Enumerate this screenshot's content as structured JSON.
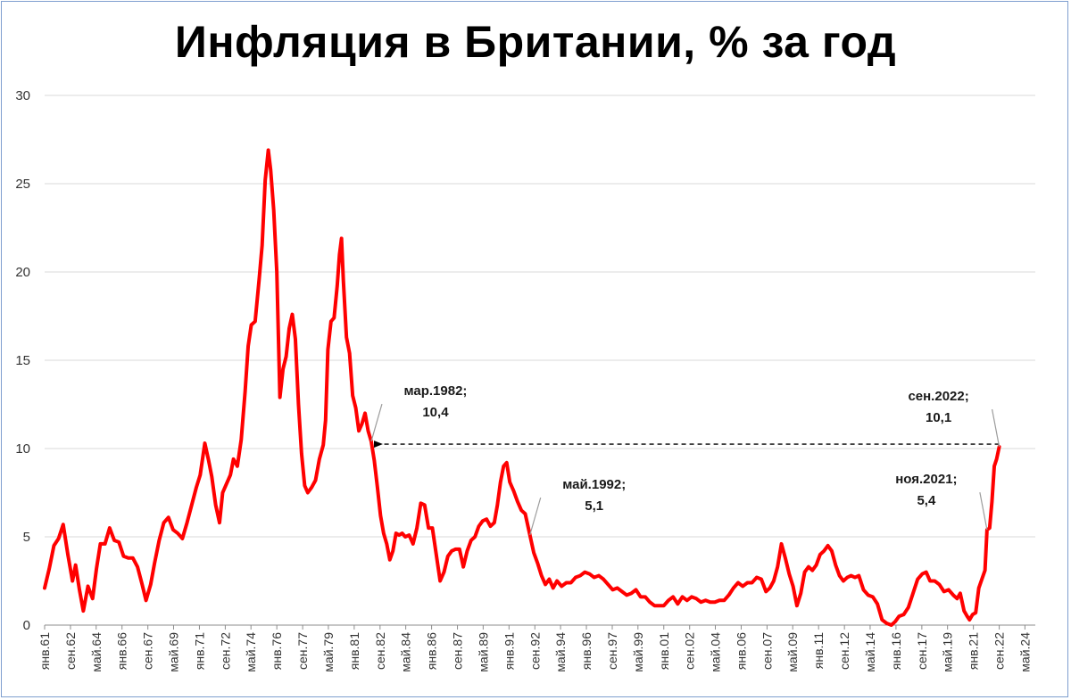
{
  "chart_data": {
    "type": "line",
    "title": "Инфляция в Британии, % за год",
    "xlabel": "",
    "ylabel": "",
    "ylim": [
      0,
      30
    ],
    "yticks": [
      0,
      5,
      10,
      15,
      20,
      25,
      30
    ],
    "grid": true,
    "legend": "none",
    "x_range": [
      1961.0,
      2025.0
    ],
    "x_tick_labels": [
      {
        "label": "янв.61",
        "x": 1961.0
      },
      {
        "label": "сен.62",
        "x": 1962.67
      },
      {
        "label": "май.64",
        "x": 1964.33
      },
      {
        "label": "янв.66",
        "x": 1966.0
      },
      {
        "label": "сен.67",
        "x": 1967.67
      },
      {
        "label": "май.69",
        "x": 1969.33
      },
      {
        "label": "янв.71",
        "x": 1971.0
      },
      {
        "label": "сен.72",
        "x": 1972.67
      },
      {
        "label": "май.74",
        "x": 1974.33
      },
      {
        "label": "янв.76",
        "x": 1976.0
      },
      {
        "label": "сен.77",
        "x": 1977.67
      },
      {
        "label": "май.79",
        "x": 1979.33
      },
      {
        "label": "янв.81",
        "x": 1981.0
      },
      {
        "label": "сен.82",
        "x": 1982.67
      },
      {
        "label": "май.84",
        "x": 1984.33
      },
      {
        "label": "янв.86",
        "x": 1986.0
      },
      {
        "label": "сен.87",
        "x": 1987.67
      },
      {
        "label": "май.89",
        "x": 1989.33
      },
      {
        "label": "янв.91",
        "x": 1991.0
      },
      {
        "label": "сен.92",
        "x": 1992.67
      },
      {
        "label": "май.94",
        "x": 1994.33
      },
      {
        "label": "янв.96",
        "x": 1996.0
      },
      {
        "label": "сен.97",
        "x": 1997.67
      },
      {
        "label": "май.99",
        "x": 1999.33
      },
      {
        "label": "янв.01",
        "x": 2001.0
      },
      {
        "label": "сен.02",
        "x": 2002.67
      },
      {
        "label": "май.04",
        "x": 2004.33
      },
      {
        "label": "янв.06",
        "x": 2006.0
      },
      {
        "label": "сен.07",
        "x": 2007.67
      },
      {
        "label": "май.09",
        "x": 2009.33
      },
      {
        "label": "янв.11",
        "x": 2011.0
      },
      {
        "label": "сен.12",
        "x": 2012.67
      },
      {
        "label": "май.14",
        "x": 2014.33
      },
      {
        "label": "янв.16",
        "x": 2016.0
      },
      {
        "label": "сен.17",
        "x": 2017.67
      },
      {
        "label": "май.19",
        "x": 2019.33
      },
      {
        "label": "янв.21",
        "x": 2021.0
      },
      {
        "label": "сен.22",
        "x": 2022.67
      },
      {
        "label": "май.24",
        "x": 2024.33
      }
    ],
    "series": [
      {
        "color": "#ff0000",
        "points": [
          [
            1961.0,
            2.1
          ],
          [
            1961.3,
            3.2
          ],
          [
            1961.6,
            4.5
          ],
          [
            1961.9,
            4.9
          ],
          [
            1962.2,
            5.7
          ],
          [
            1962.5,
            4.0
          ],
          [
            1962.8,
            2.5
          ],
          [
            1963.0,
            3.4
          ],
          [
            1963.25,
            2.0
          ],
          [
            1963.5,
            0.8
          ],
          [
            1963.8,
            2.2
          ],
          [
            1964.1,
            1.5
          ],
          [
            1964.35,
            3.2
          ],
          [
            1964.6,
            4.6
          ],
          [
            1964.9,
            4.6
          ],
          [
            1965.2,
            5.5
          ],
          [
            1965.5,
            4.8
          ],
          [
            1965.8,
            4.7
          ],
          [
            1966.1,
            3.9
          ],
          [
            1966.4,
            3.8
          ],
          [
            1966.7,
            3.8
          ],
          [
            1967.0,
            3.3
          ],
          [
            1967.3,
            2.3
          ],
          [
            1967.55,
            1.4
          ],
          [
            1967.85,
            2.3
          ],
          [
            1968.1,
            3.5
          ],
          [
            1968.4,
            4.8
          ],
          [
            1968.7,
            5.8
          ],
          [
            1969.0,
            6.1
          ],
          [
            1969.3,
            5.4
          ],
          [
            1969.6,
            5.2
          ],
          [
            1969.9,
            4.9
          ],
          [
            1970.2,
            5.8
          ],
          [
            1970.5,
            6.8
          ],
          [
            1970.8,
            7.8
          ],
          [
            1971.05,
            8.5
          ],
          [
            1971.35,
            10.3
          ],
          [
            1971.6,
            9.3
          ],
          [
            1971.8,
            8.4
          ],
          [
            1972.05,
            6.8
          ],
          [
            1972.3,
            5.8
          ],
          [
            1972.5,
            7.5
          ],
          [
            1972.75,
            8.0
          ],
          [
            1973.0,
            8.5
          ],
          [
            1973.2,
            9.4
          ],
          [
            1973.45,
            9.0
          ],
          [
            1973.7,
            10.5
          ],
          [
            1973.95,
            13.2
          ],
          [
            1974.15,
            15.8
          ],
          [
            1974.35,
            17.0
          ],
          [
            1974.6,
            17.2
          ],
          [
            1974.85,
            19.5
          ],
          [
            1975.05,
            21.5
          ],
          [
            1975.25,
            25.2
          ],
          [
            1975.45,
            26.9
          ],
          [
            1975.6,
            25.8
          ],
          [
            1975.8,
            23.5
          ],
          [
            1976.0,
            20.0
          ],
          [
            1976.2,
            12.9
          ],
          [
            1976.4,
            14.5
          ],
          [
            1976.6,
            15.2
          ],
          [
            1976.8,
            16.8
          ],
          [
            1977.0,
            17.6
          ],
          [
            1977.2,
            16.2
          ],
          [
            1977.4,
            12.5
          ],
          [
            1977.6,
            9.7
          ],
          [
            1977.8,
            7.9
          ],
          [
            1978.0,
            7.5
          ],
          [
            1978.25,
            7.8
          ],
          [
            1978.5,
            8.2
          ],
          [
            1978.75,
            9.4
          ],
          [
            1979.0,
            10.2
          ],
          [
            1979.15,
            11.6
          ],
          [
            1979.3,
            15.6
          ],
          [
            1979.5,
            17.2
          ],
          [
            1979.7,
            17.4
          ],
          [
            1979.9,
            19.2
          ],
          [
            1980.05,
            21.0
          ],
          [
            1980.18,
            21.9
          ],
          [
            1980.3,
            19.5
          ],
          [
            1980.5,
            16.3
          ],
          [
            1980.7,
            15.4
          ],
          [
            1980.9,
            13.0
          ],
          [
            1981.1,
            12.3
          ],
          [
            1981.3,
            11.0
          ],
          [
            1981.5,
            11.4
          ],
          [
            1981.7,
            12.0
          ],
          [
            1981.9,
            11.0
          ],
          [
            1982.1,
            10.4
          ],
          [
            1982.3,
            9.3
          ],
          [
            1982.5,
            7.8
          ],
          [
            1982.7,
            6.2
          ],
          [
            1982.9,
            5.2
          ],
          [
            1983.1,
            4.6
          ],
          [
            1983.3,
            3.7
          ],
          [
            1983.5,
            4.2
          ],
          [
            1983.7,
            5.2
          ],
          [
            1983.9,
            5.1
          ],
          [
            1984.1,
            5.2
          ],
          [
            1984.3,
            5.0
          ],
          [
            1984.55,
            5.1
          ],
          [
            1984.8,
            4.6
          ],
          [
            1985.05,
            5.5
          ],
          [
            1985.3,
            6.9
          ],
          [
            1985.55,
            6.8
          ],
          [
            1985.8,
            5.5
          ],
          [
            1986.05,
            5.5
          ],
          [
            1986.3,
            4.0
          ],
          [
            1986.55,
            2.5
          ],
          [
            1986.8,
            3.0
          ],
          [
            1987.05,
            3.9
          ],
          [
            1987.3,
            4.2
          ],
          [
            1987.55,
            4.3
          ],
          [
            1987.8,
            4.3
          ],
          [
            1988.05,
            3.3
          ],
          [
            1988.3,
            4.2
          ],
          [
            1988.55,
            4.8
          ],
          [
            1988.8,
            5.0
          ],
          [
            1989.05,
            5.6
          ],
          [
            1989.3,
            5.9
          ],
          [
            1989.55,
            6.0
          ],
          [
            1989.8,
            5.6
          ],
          [
            1990.05,
            5.8
          ],
          [
            1990.25,
            6.8
          ],
          [
            1990.45,
            8.1
          ],
          [
            1990.65,
            9.0
          ],
          [
            1990.85,
            9.2
          ],
          [
            1991.05,
            8.1
          ],
          [
            1991.3,
            7.6
          ],
          [
            1991.55,
            7.0
          ],
          [
            1991.8,
            6.5
          ],
          [
            1992.05,
            6.3
          ],
          [
            1992.35,
            5.1
          ],
          [
            1992.6,
            4.1
          ],
          [
            1992.85,
            3.5
          ],
          [
            1993.1,
            2.8
          ],
          [
            1993.35,
            2.3
          ],
          [
            1993.6,
            2.6
          ],
          [
            1993.85,
            2.1
          ],
          [
            1994.1,
            2.5
          ],
          [
            1994.4,
            2.2
          ],
          [
            1994.7,
            2.4
          ],
          [
            1995.0,
            2.4
          ],
          [
            1995.3,
            2.7
          ],
          [
            1995.6,
            2.8
          ],
          [
            1995.9,
            3.0
          ],
          [
            1996.2,
            2.9
          ],
          [
            1996.5,
            2.7
          ],
          [
            1996.8,
            2.8
          ],
          [
            1997.1,
            2.6
          ],
          [
            1997.4,
            2.3
          ],
          [
            1997.7,
            2.0
          ],
          [
            1998.0,
            2.1
          ],
          [
            1998.3,
            1.9
          ],
          [
            1998.6,
            1.7
          ],
          [
            1998.9,
            1.8
          ],
          [
            1999.2,
            2.0
          ],
          [
            1999.5,
            1.6
          ],
          [
            1999.8,
            1.6
          ],
          [
            2000.1,
            1.3
          ],
          [
            2000.4,
            1.1
          ],
          [
            2000.7,
            1.1
          ],
          [
            2001.0,
            1.1
          ],
          [
            2001.3,
            1.4
          ],
          [
            2001.6,
            1.6
          ],
          [
            2001.9,
            1.2
          ],
          [
            2002.2,
            1.6
          ],
          [
            2002.5,
            1.4
          ],
          [
            2002.8,
            1.6
          ],
          [
            2003.1,
            1.5
          ],
          [
            2003.4,
            1.3
          ],
          [
            2003.7,
            1.4
          ],
          [
            2004.0,
            1.3
          ],
          [
            2004.3,
            1.3
          ],
          [
            2004.6,
            1.4
          ],
          [
            2004.9,
            1.4
          ],
          [
            2005.2,
            1.7
          ],
          [
            2005.5,
            2.1
          ],
          [
            2005.8,
            2.4
          ],
          [
            2006.1,
            2.2
          ],
          [
            2006.4,
            2.4
          ],
          [
            2006.7,
            2.4
          ],
          [
            2007.0,
            2.7
          ],
          [
            2007.3,
            2.6
          ],
          [
            2007.6,
            1.9
          ],
          [
            2007.85,
            2.1
          ],
          [
            2008.1,
            2.5
          ],
          [
            2008.35,
            3.3
          ],
          [
            2008.6,
            4.6
          ],
          [
            2008.85,
            3.8
          ],
          [
            2009.1,
            2.9
          ],
          [
            2009.35,
            2.2
          ],
          [
            2009.6,
            1.1
          ],
          [
            2009.85,
            1.8
          ],
          [
            2010.1,
            3.0
          ],
          [
            2010.35,
            3.3
          ],
          [
            2010.6,
            3.1
          ],
          [
            2010.85,
            3.4
          ],
          [
            2011.1,
            4.0
          ],
          [
            2011.35,
            4.2
          ],
          [
            2011.6,
            4.5
          ],
          [
            2011.85,
            4.2
          ],
          [
            2012.1,
            3.4
          ],
          [
            2012.35,
            2.8
          ],
          [
            2012.6,
            2.5
          ],
          [
            2012.85,
            2.7
          ],
          [
            2013.1,
            2.8
          ],
          [
            2013.35,
            2.7
          ],
          [
            2013.6,
            2.8
          ],
          [
            2013.9,
            2.0
          ],
          [
            2014.2,
            1.7
          ],
          [
            2014.5,
            1.6
          ],
          [
            2014.8,
            1.2
          ],
          [
            2015.1,
            0.3
          ],
          [
            2015.4,
            0.1
          ],
          [
            2015.7,
            0.0
          ],
          [
            2015.95,
            0.2
          ],
          [
            2016.2,
            0.5
          ],
          [
            2016.5,
            0.6
          ],
          [
            2016.8,
            1.0
          ],
          [
            2017.1,
            1.8
          ],
          [
            2017.4,
            2.6
          ],
          [
            2017.7,
            2.9
          ],
          [
            2017.95,
            3.0
          ],
          [
            2018.2,
            2.5
          ],
          [
            2018.5,
            2.5
          ],
          [
            2018.8,
            2.3
          ],
          [
            2019.1,
            1.9
          ],
          [
            2019.4,
            2.0
          ],
          [
            2019.7,
            1.7
          ],
          [
            2019.95,
            1.5
          ],
          [
            2020.15,
            1.8
          ],
          [
            2020.4,
            0.8
          ],
          [
            2020.6,
            0.5
          ],
          [
            2020.75,
            0.3
          ],
          [
            2020.95,
            0.6
          ],
          [
            2021.15,
            0.7
          ],
          [
            2021.35,
            2.1
          ],
          [
            2021.55,
            2.6
          ],
          [
            2021.75,
            3.1
          ],
          [
            2021.88,
            5.4
          ],
          [
            2022.05,
            5.5
          ],
          [
            2022.2,
            7.0
          ],
          [
            2022.35,
            9.0
          ],
          [
            2022.5,
            9.4
          ],
          [
            2022.67,
            10.1
          ]
        ]
      }
    ],
    "reference_line": {
      "y": 10.25,
      "x_from": 1982.1,
      "x_to": 2022.67,
      "style": "dashed",
      "arrow": "left"
    },
    "annotations": [
      {
        "lines": [
          "мар.1982;",
          "10,4"
        ],
        "x": 1982.1,
        "y": 10.4,
        "side": "right"
      },
      {
        "lines": [
          "май.1992;",
          "5,1"
        ],
        "x": 1992.35,
        "y": 5.1,
        "side": "right"
      },
      {
        "lines": [
          "сен.2022;",
          "10,1"
        ],
        "x": 2022.67,
        "y": 10.1,
        "side": "left"
      },
      {
        "lines": [
          "ноя.2021;",
          "5,4"
        ],
        "x": 2021.88,
        "y": 5.4,
        "side": "left"
      }
    ]
  }
}
